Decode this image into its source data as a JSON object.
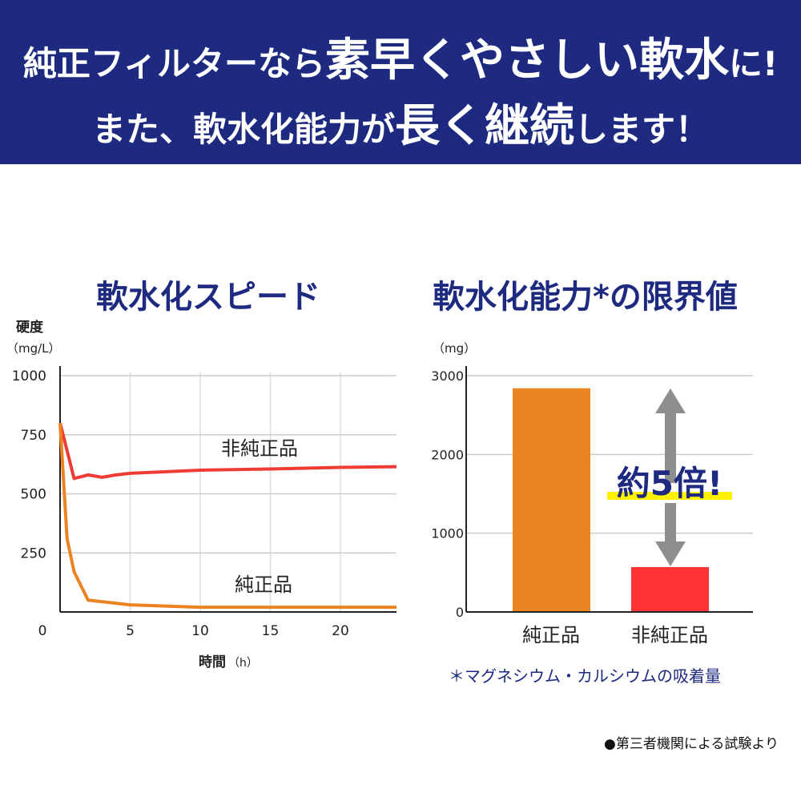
{
  "header": {
    "line1": [
      "純正フィルターなら",
      "素早くやさしい軟水",
      "に!"
    ],
    "line2": [
      "また、軟水化能力が",
      "長く継続",
      "します！"
    ],
    "background": "#1d2a80"
  },
  "chart_data": [
    {
      "type": "line",
      "title": "軟水化スピード",
      "ylabel": "硬度",
      "yunit": "（mg/L）",
      "xlabel": "時間",
      "xunit": "（h）",
      "xlim": [
        0,
        24
      ],
      "ylim": [
        0,
        1000
      ],
      "xticks": [
        "0",
        "5",
        "10",
        "15",
        "20"
      ],
      "yticks": [
        "1000",
        "750",
        "500",
        "250"
      ],
      "grid": true,
      "series": [
        {
          "name": "非純正品",
          "color": "#ee3b34",
          "points": [
            [
              0,
              800
            ],
            [
              1,
              565
            ],
            [
              2,
              580
            ],
            [
              3,
              570
            ],
            [
              4,
              580
            ],
            [
              5,
              587
            ],
            [
              10,
              600
            ],
            [
              15,
              605
            ],
            [
              20,
              612
            ],
            [
              24,
              615
            ]
          ]
        },
        {
          "name": "純正品",
          "color": "#ec8321",
          "points": [
            [
              0,
              800
            ],
            [
              0.5,
              310
            ],
            [
              1,
              170
            ],
            [
              2,
              50
            ],
            [
              5,
              30
            ],
            [
              10,
              20
            ],
            [
              24,
              20
            ]
          ]
        }
      ]
    },
    {
      "type": "bar",
      "title": "軟水化能力*の限界値",
      "yunit": "（mg）",
      "ylim": [
        0,
        3000
      ],
      "yticks": [
        "3000",
        "2000",
        "1000",
        "0"
      ],
      "grid": true,
      "categories": [
        "純正品",
        "非純正品"
      ],
      "values": [
        2840,
        570
      ],
      "colors": [
        "#ec8321",
        "#fe3336"
      ],
      "annotation": "約5倍!",
      "note": "＊マグネシウム・カルシウムの吸着量"
    }
  ],
  "footer": "●第三者機関による試験より"
}
